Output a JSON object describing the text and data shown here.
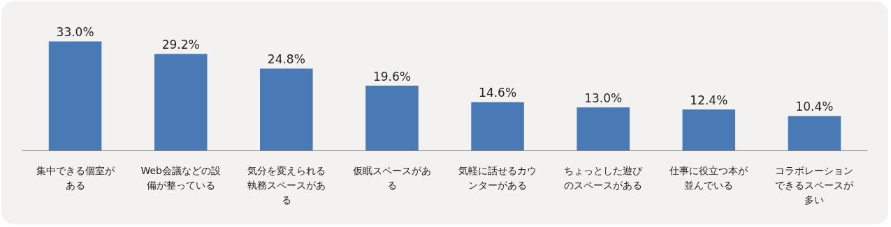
{
  "chart_data": {
    "type": "bar",
    "categories": [
      "集中できる個室がある",
      "Web会議などの設備が整っている",
      "気分を変えられる執務スペースがある",
      "仮眠スペースがある",
      "気軽に話せるカウンターがある",
      "ちょっとした遊びのスペースがある",
      "仕事に役立つ本が並んでいる",
      "コラボレーションできるスペースが多い"
    ],
    "values": [
      33.0,
      29.2,
      24.8,
      19.6,
      14.6,
      13.0,
      12.4,
      10.4
    ],
    "value_labels": [
      "33.0%",
      "29.2%",
      "24.8%",
      "19.6%",
      "14.6%",
      "13.0%",
      "12.4%",
      "10.4%"
    ],
    "color": "#4a7ab5",
    "tick_labels": "x"
  }
}
